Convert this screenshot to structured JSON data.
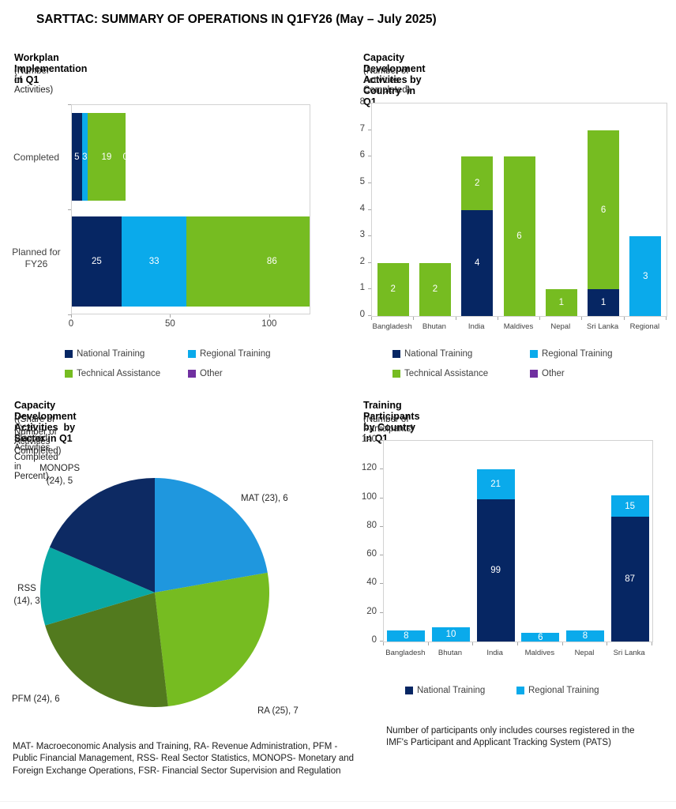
{
  "page_title": "SARTTAC: SUMMARY OF OPERATIONS IN Q1FY26 (May – July 2025)",
  "colors": {
    "national_training": "#062663",
    "regional_training": "#0aaaeb",
    "technical_assistance": "#76bc21",
    "other": "#7030a0",
    "pie_mat_blue": "#1f97de",
    "pie_ra_green": "#76bc21",
    "pie_pfm_olive": "#527a1e",
    "pie_rss_teal": "#09a8a4",
    "pie_monops_navy": "#0d2a63"
  },
  "chart_data": [
    {
      "id": "workplan",
      "type": "bar",
      "orientation": "horizontal",
      "stacked": true,
      "title": "Workplan Implementation in Q1",
      "subtitle": "(Number of Activities)",
      "categories": [
        "Completed",
        "Planned for FY26"
      ],
      "series": [
        {
          "name": "National Training",
          "color": "#062663",
          "values": [
            5,
            25
          ]
        },
        {
          "name": "Regional Training",
          "color": "#0aaaeb",
          "values": [
            3,
            33
          ]
        },
        {
          "name": "Technical Assistance",
          "color": "#76bc21",
          "values": [
            19,
            86
          ]
        },
        {
          "name": "Other",
          "color": "#7030a0",
          "values": [
            0,
            0
          ]
        }
      ],
      "data_labels": [
        [
          "5",
          "3",
          "19",
          "0"
        ],
        [
          "25",
          "33",
          "86",
          null
        ]
      ],
      "xlim": [
        0,
        120
      ],
      "xticks": [
        "0",
        "50",
        "100"
      ],
      "xtick_values": [
        0,
        50,
        100
      ],
      "legend": [
        {
          "label": "National Training",
          "color": "#062663"
        },
        {
          "label": "Regional Training",
          "color": "#0aaaeb"
        },
        {
          "label": "Technical Assistance",
          "color": "#76bc21"
        },
        {
          "label": "Other",
          "color": "#7030a0"
        }
      ]
    },
    {
      "id": "cd_by_country",
      "type": "bar",
      "orientation": "vertical",
      "stacked": true,
      "title": "Capacity Development Activities by Country  in Q1",
      "subtitle": "(Number of Activities Completed)",
      "categories": [
        "Bangladesh",
        "Bhutan",
        "India",
        "Maldives",
        "Nepal",
        "Sri Lanka",
        "Regional"
      ],
      "series": [
        {
          "name": "National Training",
          "color": "#062663",
          "values": [
            0,
            0,
            4,
            0,
            0,
            1,
            0
          ]
        },
        {
          "name": "Regional Training",
          "color": "#0aaaeb",
          "values": [
            0,
            0,
            0,
            0,
            0,
            0,
            3
          ]
        },
        {
          "name": "Technical Assistance",
          "color": "#76bc21",
          "values": [
            2,
            2,
            2,
            6,
            1,
            6,
            0
          ]
        },
        {
          "name": "Other",
          "color": "#7030a0",
          "values": [
            0,
            0,
            0,
            0,
            0,
            0,
            0
          ]
        }
      ],
      "ylim": [
        0,
        8
      ],
      "yticks": [
        0,
        1,
        2,
        3,
        4,
        5,
        6,
        7,
        8
      ],
      "legend": [
        {
          "label": "National Training",
          "color": "#062663"
        },
        {
          "label": "Regional Training",
          "color": "#0aaaeb"
        },
        {
          "label": "Technical Assistance",
          "color": "#76bc21"
        },
        {
          "label": "Other",
          "color": "#7030a0"
        }
      ]
    },
    {
      "id": "cd_by_sector",
      "type": "pie",
      "title": "Capacity Development Activities  by Sector in Q1",
      "subtitle_lines": [
        "((Share of FY25 Planned Activities Completed in Percent),",
        "Number of Activities Completed)"
      ],
      "slices": [
        {
          "name": "MAT",
          "label": "MAT (23), 6",
          "label_lines": [
            "MAT (23), 6"
          ],
          "value": 6,
          "color": "#1f97de"
        },
        {
          "name": "RA",
          "label": "RA (25), 7",
          "label_lines": [
            "RA (25), 7"
          ],
          "value": 7,
          "color": "#76bc21"
        },
        {
          "name": "PFM",
          "label": "PFM (24), 6",
          "label_lines": [
            "PFM (24), 6"
          ],
          "value": 6,
          "color": "#527a1e"
        },
        {
          "name": "RSS",
          "label": "RSS (14), 3",
          "label_lines": [
            "RSS",
            "(14), 3"
          ],
          "value": 3,
          "color": "#09a8a4"
        },
        {
          "name": "MONOPS",
          "label": "MONOPS (24), 5",
          "label_lines": [
            "MONOPS",
            "(24), 5"
          ],
          "value": 5,
          "color": "#0d2a63"
        }
      ],
      "footnote": "MAT- Macroeconomic Analysis and Training, RA- Revenue Administration, PFM - Public Financial Management, RSS- Real Sector Statistics, MONOPS- Monetary and Foreign Exchange Operations, FSR- Financial Sector Supervision and Regulation"
    },
    {
      "id": "participants",
      "type": "bar",
      "orientation": "vertical",
      "stacked": true,
      "title": "Training Participants by Country in Q1",
      "subtitle": "(Number of Participants)",
      "categories": [
        "Bangladesh",
        "Bhutan",
        "India",
        "Maldives",
        "Nepal",
        "Sri Lanka"
      ],
      "series": [
        {
          "name": "National Training",
          "color": "#062663",
          "values": [
            0,
            0,
            99,
            0,
            0,
            87
          ]
        },
        {
          "name": "Regional Training",
          "color": "#0aaaeb",
          "values": [
            8,
            10,
            21,
            6,
            8,
            15
          ]
        }
      ],
      "ylim": [
        0,
        140
      ],
      "yticks": [
        0,
        20,
        40,
        60,
        80,
        100,
        120,
        140
      ],
      "legend": [
        {
          "label": "National Training",
          "color": "#062663"
        },
        {
          "label": "Regional Training",
          "color": "#0aaaeb"
        }
      ],
      "footnote": "Number of participants only includes courses registered in the IMF's Participant and Applicant Tracking System (PATS)"
    }
  ]
}
